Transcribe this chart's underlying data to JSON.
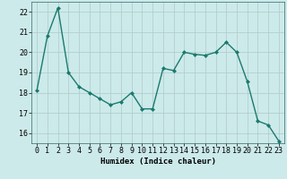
{
  "x": [
    0,
    1,
    2,
    3,
    4,
    5,
    6,
    7,
    8,
    9,
    10,
    11,
    12,
    13,
    14,
    15,
    16,
    17,
    18,
    19,
    20,
    21,
    22,
    23
  ],
  "y": [
    18.1,
    20.8,
    22.2,
    19.0,
    18.3,
    18.0,
    17.7,
    17.4,
    17.55,
    18.0,
    17.2,
    17.2,
    19.2,
    19.1,
    20.0,
    19.9,
    19.85,
    20.0,
    20.5,
    20.0,
    18.55,
    16.6,
    16.4,
    15.6
  ],
  "line_color": "#1a7a6e",
  "marker": "D",
  "markersize": 2.0,
  "linewidth": 1.0,
  "bg_color": "#cceaea",
  "grid_color": "#b0c8c8",
  "xlabel": "Humidex (Indice chaleur)",
  "xlim": [
    -0.5,
    23.5
  ],
  "ylim": [
    15.5,
    22.5
  ],
  "yticks": [
    16,
    17,
    18,
    19,
    20,
    21,
    22
  ],
  "xticks": [
    0,
    1,
    2,
    3,
    4,
    5,
    6,
    7,
    8,
    9,
    10,
    11,
    12,
    13,
    14,
    15,
    16,
    17,
    18,
    19,
    20,
    21,
    22,
    23
  ],
  "xlabel_fontsize": 6.5,
  "tick_fontsize": 6.0
}
